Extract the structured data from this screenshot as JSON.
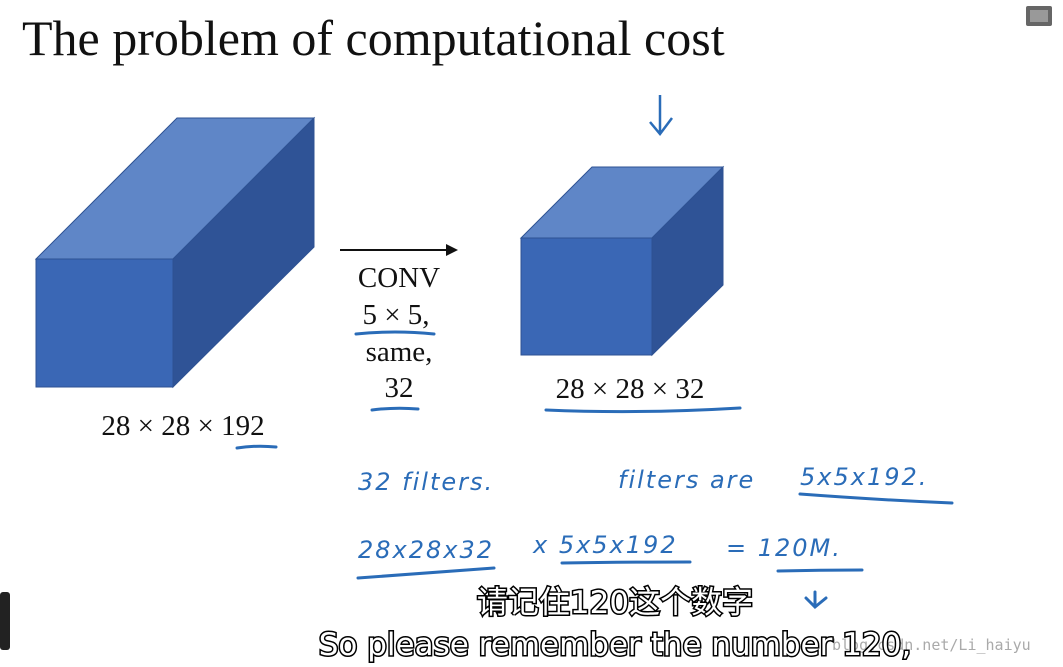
{
  "slide": {
    "title": "The problem of computational cost",
    "input_label": "28 × 28 × 192",
    "conv_lines": [
      "CONV",
      "5 × 5,",
      "same,",
      "32"
    ],
    "output_label": "28 × 28 × 32"
  },
  "notes": [
    "32 filters.",
    "filters are",
    "5x5x192.",
    "28x28x32",
    "x 5x5x192",
    "= 120M."
  ],
  "subtitles": [
    "请记住120这个数字",
    "So please remember the number 120,"
  ],
  "watermark": "blog.csdn.net/Li_haiyu"
}
